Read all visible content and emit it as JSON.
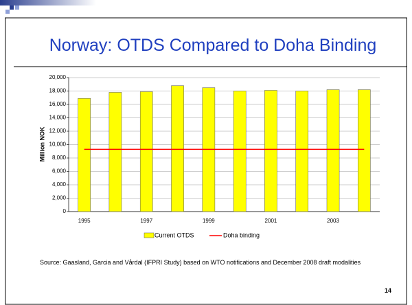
{
  "slide_title": "Norway: OTDS Compared to Doha Binding",
  "chart_data": {
    "type": "bar",
    "y_label": "Million NOK",
    "categories": [
      "1995",
      null,
      "1997",
      null,
      "1999",
      null,
      "2001",
      null,
      "2003",
      null
    ],
    "series": [
      {
        "name": "Current OTDS",
        "type": "bar",
        "color": "#ffff00",
        "values": [
          16900,
          17800,
          17900,
          18800,
          18500,
          18000,
          18100,
          18000,
          18200,
          18200
        ]
      },
      {
        "name": "Doha binding",
        "type": "line",
        "color": "#ff0000",
        "values": [
          9300,
          9300,
          9300,
          9300,
          9300,
          9300,
          9300,
          9300,
          9300,
          9300
        ]
      }
    ],
    "ylim": [
      0,
      20000
    ],
    "yticks": [
      0,
      {
        "value": 2000,
        "label": "2,000"
      },
      {
        "value": 4000,
        "label": "4,000"
      },
      {
        "value": 6000,
        "label": "6,000"
      },
      {
        "value": 8000,
        "label": "8,000"
      },
      {
        "value": 10000,
        "label": "10,000"
      },
      {
        "value": 12000,
        "label": "12,000"
      },
      {
        "value": 14000,
        "label": "14,000"
      },
      {
        "value": 16000,
        "label": "16,000"
      },
      {
        "value": 18000,
        "label": "18,000"
      },
      {
        "value": 20000,
        "label": "20,000"
      }
    ],
    "grid": true,
    "legend": "bottom"
  },
  "source": "Source:  Gaasland, Garcia and Vårdal (IFPRI Study) based on WTO notifications and December 2008  draft modalities",
  "page_number": "14"
}
